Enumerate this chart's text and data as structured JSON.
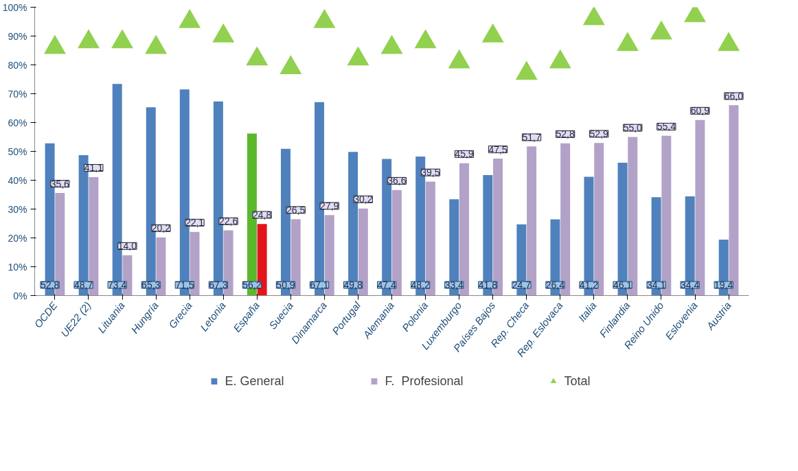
{
  "chart_data": {
    "type": "bar",
    "categories": [
      "OCDE",
      "UE22 (2)",
      "Lituania",
      "Hungría",
      "Grecia",
      "Letonia",
      "España",
      "Suecia",
      "Dinamarca",
      "Portugal",
      "Alemania",
      "Polonia",
      "Luxemburgo",
      "Países Bajos",
      "Rep. Checa",
      "Rep. Eslovaca",
      "Italia",
      "Finlandia",
      "Reino Unido",
      "Eslovenia",
      "Austria"
    ],
    "series": [
      {
        "name": "E. General",
        "color": "#4f81bd",
        "colors": [
          "#4f81bd",
          "#4f81bd",
          "#4f81bd",
          "#4f81bd",
          "#4f81bd",
          "#4f81bd",
          "#5bb82a",
          "#4f81bd",
          "#4f81bd",
          "#4f81bd",
          "#4f81bd",
          "#4f81bd",
          "#4f81bd",
          "#4f81bd",
          "#4f81bd",
          "#4f81bd",
          "#4f81bd",
          "#4f81bd",
          "#4f81bd",
          "#4f81bd",
          "#4f81bd"
        ],
        "values": [
          52.8,
          48.7,
          73.4,
          65.3,
          71.5,
          67.3,
          56.2,
          50.9,
          67.1,
          49.8,
          47.4,
          48.2,
          33.4,
          41.8,
          24.7,
          26.4,
          41.2,
          46.1,
          34.1,
          34.4,
          19.4
        ],
        "value_labels": [
          "52,8",
          "48,7",
          "73,4",
          "65,3",
          "71,5",
          "67,3",
          "56,2",
          "50,9",
          "67,1",
          "49,8",
          "47,4",
          "48,2",
          "33,4",
          "41,8",
          "24,7",
          "26,4",
          "41,2",
          "46,1",
          "34,1",
          "34,4",
          "19,4"
        ]
      },
      {
        "name": "F.  Profesional",
        "color": "#b3a2c7",
        "colors": [
          "#b3a2c7",
          "#b3a2c7",
          "#b3a2c7",
          "#b3a2c7",
          "#b3a2c7",
          "#b3a2c7",
          "#e3141b",
          "#b3a2c7",
          "#b3a2c7",
          "#b3a2c7",
          "#b3a2c7",
          "#b3a2c7",
          "#b3a2c7",
          "#b3a2c7",
          "#b3a2c7",
          "#b3a2c7",
          "#b3a2c7",
          "#b3a2c7",
          "#b3a2c7",
          "#b3a2c7",
          "#b3a2c7"
        ],
        "values": [
          35.6,
          41.1,
          14.0,
          20.2,
          22.1,
          22.6,
          24.8,
          26.5,
          27.9,
          30.2,
          36.6,
          39.5,
          45.9,
          47.5,
          51.7,
          52.8,
          52.9,
          55.0,
          55.4,
          60.9,
          66.0
        ],
        "value_labels": [
          "35,6",
          "41,1",
          "14,0",
          "20,2",
          "22,1",
          "22,6",
          "24,8",
          "26,5",
          "27,9",
          "30,2",
          "36,6",
          "39,5",
          "45,9",
          "47,5",
          "51,7",
          "52,8",
          "52,9",
          "55,0",
          "55,4",
          "60,9",
          "66,0"
        ]
      },
      {
        "name": "Total",
        "type": "scatter",
        "marker": "triangle",
        "color": "#92d050",
        "values": [
          86,
          88,
          88,
          86,
          95,
          90,
          82,
          79,
          95,
          82,
          86,
          88,
          81,
          90,
          77,
          81,
          96,
          87,
          91,
          97,
          87
        ]
      }
    ],
    "ylim": [
      0,
      100
    ],
    "yticks": [
      {
        "value": 0,
        "label": "0%"
      },
      {
        "value": 10,
        "label": "10%"
      },
      {
        "value": 20,
        "label": "20%"
      },
      {
        "value": 30,
        "label": "30%"
      },
      {
        "value": 40,
        "label": "40%"
      },
      {
        "value": 50,
        "label": "50%"
      },
      {
        "value": 60,
        "label": "60%"
      },
      {
        "value": 70,
        "label": "70%"
      },
      {
        "value": 80,
        "label": "80%"
      },
      {
        "value": 90,
        "label": "90%"
      },
      {
        "value": 100,
        "label": "100%"
      }
    ],
    "grid": false,
    "legend": "bottom"
  }
}
